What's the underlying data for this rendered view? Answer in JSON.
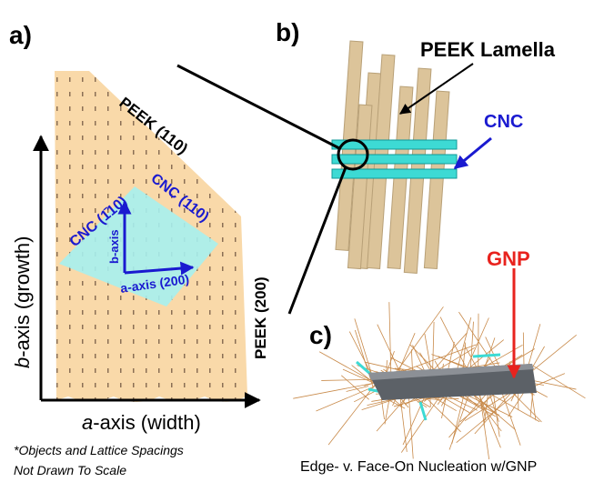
{
  "panels": {
    "a": {
      "label": "a)",
      "peek_110": "PEEK (110)",
      "cnc_1bar10": "CNC (1̄10)",
      "cnc_110": "CNC (110)",
      "b_axis_inner": "b-axis",
      "a_axis_inner": "a-axis (200)",
      "peek_200": "PEEK (200)",
      "y_axis": {
        "italic": "b",
        "rest": "-axis (growth)"
      },
      "x_axis": {
        "italic": "a",
        "rest": "-axis (width)"
      },
      "note": [
        "*Objects and Lattice Spacings",
        "Not Drawn To Scale"
      ]
    },
    "b": {
      "label": "b)",
      "lamella": "PEEK Lamella",
      "cnc": "CNC"
    },
    "c": {
      "label": "c)",
      "gnp": "GNP",
      "caption": "Edge- v. Face-On Nucleation w/GNP"
    }
  }
}
